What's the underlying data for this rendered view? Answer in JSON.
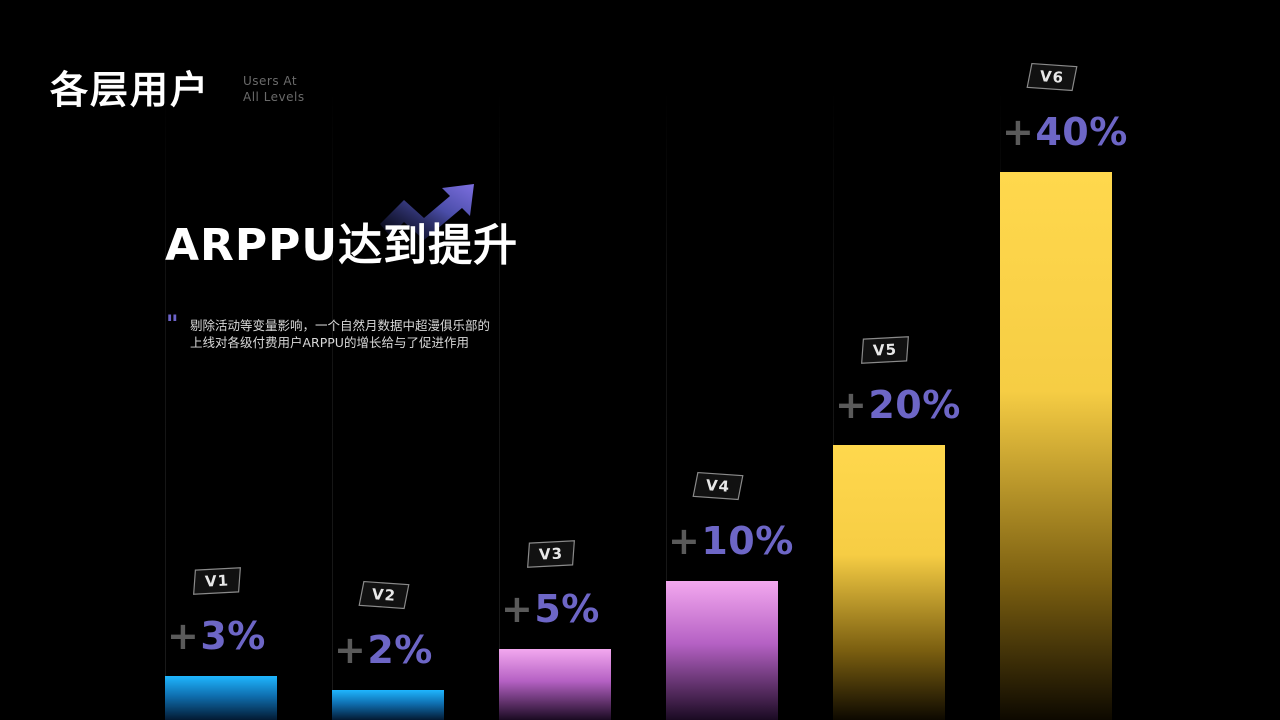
{
  "header": {
    "title": "各层用户",
    "subtitle_line1": "Users At",
    "subtitle_line2": "All Levels"
  },
  "headline": "ARPPU达到提升",
  "description": {
    "line1": "剔除活动等变量影响，一个自然月数据中超漫俱乐部的",
    "line2": "上线对各级付费用户ARPPU的增长给与了促进作用"
  },
  "icons": {
    "quote": "quote-mark-icon",
    "trend": "trend-up-arrow-icon"
  },
  "colors": {
    "background": "#000000",
    "label": "#6d66c6",
    "plus": "#5a5a5a",
    "cyan": "#1fb6ff",
    "pink": "#f3a8ef",
    "yellow": "#ffd84d"
  },
  "chart_data": {
    "type": "bar",
    "title": "ARPPU达到提升",
    "xlabel": "",
    "ylabel": "",
    "ylim": [
      0,
      40
    ],
    "grid": false,
    "categories": [
      "V1",
      "V2",
      "V3",
      "V4",
      "V5",
      "V6"
    ],
    "values": [
      3,
      2,
      5,
      10,
      20,
      40
    ],
    "data_labels": [
      "3%",
      "2%",
      "5%",
      "10%",
      "20%",
      "40%"
    ],
    "plus_sign": "+",
    "bar_colors": [
      "cyan",
      "cyan",
      "pink",
      "pink",
      "yellow",
      "yellow"
    ]
  }
}
